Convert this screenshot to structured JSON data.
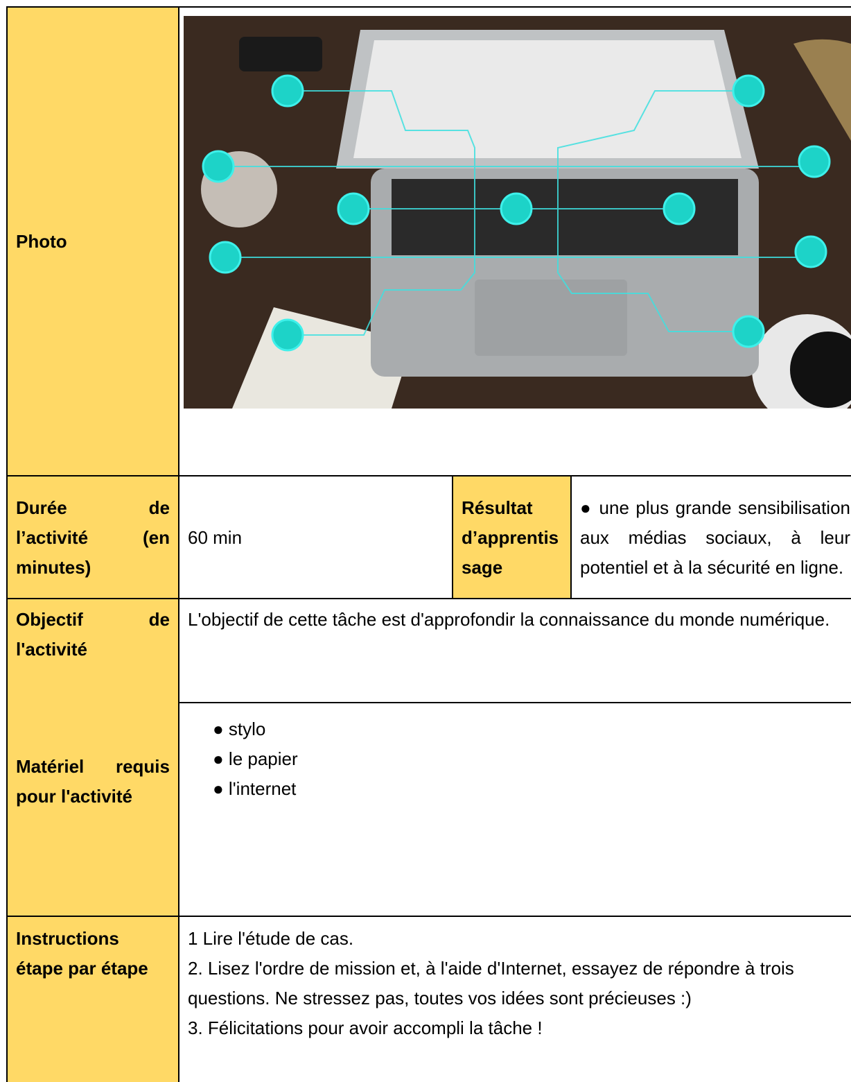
{
  "photo": {
    "label": "Photo"
  },
  "duration": {
    "label": "Durée de l’activité (en minutes)",
    "value": "60 min"
  },
  "outcome": {
    "label": "Résultat d’apprentissage",
    "text": "● une plus grande sensibilisation aux médias sociaux, à leur potentiel et à la sécurité en ligne."
  },
  "objective": {
    "label": "Objectif de l'activité",
    "text": "L'objectif de cette tâche est d'approfondir la connaissance du monde numérique."
  },
  "materials": {
    "label": "Matériel requis pour l'activité",
    "items": [
      "● stylo",
      "● le papier",
      "● l'internet"
    ]
  },
  "instructions": {
    "label": "Instructions étape par étape",
    "steps": [
      "1 Lire l'étude de cas.",
      "2. Lisez l'ordre de mission et, à l'aide d'Internet, essayez de répondre à trois questions. Ne stressez pas, toutes vos idées sont précieuses :)",
      "3. Félicitations pour avoir accompli la tâche !"
    ]
  }
}
